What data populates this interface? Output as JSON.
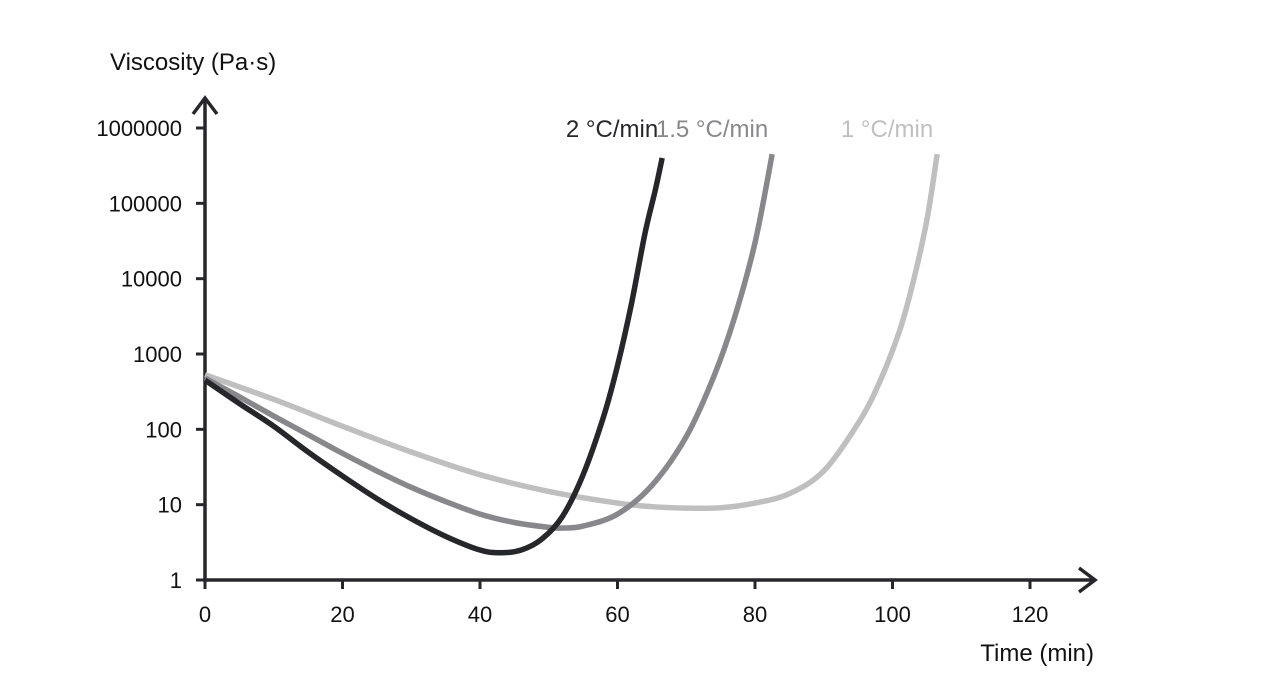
{
  "chart_data": {
    "type": "line",
    "xlabel": "Time (min)",
    "ylabel": "Viscosity (Pa·s)",
    "x_scale": "linear",
    "y_scale": "log",
    "xlim": [
      0,
      120
    ],
    "ylim": [
      1,
      1000000
    ],
    "x_ticks": [
      0,
      20,
      40,
      60,
      80,
      100,
      120
    ],
    "x_tick_labels": [
      "0",
      "20",
      "40",
      "60",
      "80",
      "100",
      "120"
    ],
    "y_ticks": [
      1,
      10,
      100,
      1000,
      10000,
      100000,
      1000000
    ],
    "y_tick_labels": [
      "1",
      "10",
      "100",
      "1000",
      "10000",
      "100000",
      "1000000"
    ],
    "grid": false,
    "legend": "inline labels at curve ends",
    "series": [
      {
        "name": "2 °C/min",
        "color": "#26272b",
        "points": [
          [
            0,
            450
          ],
          [
            5,
            220
          ],
          [
            10,
            110
          ],
          [
            15,
            50
          ],
          [
            20,
            24
          ],
          [
            25,
            12
          ],
          [
            30,
            6.5
          ],
          [
            35,
            3.8
          ],
          [
            40,
            2.5
          ],
          [
            43,
            2.3
          ],
          [
            46,
            2.5
          ],
          [
            49,
            3.5
          ],
          [
            52,
            7
          ],
          [
            55,
            25
          ],
          [
            58,
            150
          ],
          [
            60,
            700
          ],
          [
            62,
            4500
          ],
          [
            64,
            40000
          ],
          [
            65.5,
            150000
          ],
          [
            66.5,
            400000
          ]
        ]
      },
      {
        "name": "1.5 °C/min",
        "color": "#88888c",
        "points": [
          [
            0,
            480
          ],
          [
            5,
            270
          ],
          [
            10,
            150
          ],
          [
            15,
            85
          ],
          [
            20,
            48
          ],
          [
            25,
            28
          ],
          [
            30,
            17
          ],
          [
            35,
            11
          ],
          [
            40,
            7.5
          ],
          [
            45,
            5.8
          ],
          [
            50,
            5.0
          ],
          [
            52,
            4.9
          ],
          [
            55,
            5.2
          ],
          [
            60,
            7.5
          ],
          [
            65,
            18
          ],
          [
            70,
            80
          ],
          [
            74,
            500
          ],
          [
            77,
            3000
          ],
          [
            80,
            30000
          ],
          [
            82.5,
            450000
          ]
        ]
      },
      {
        "name": "1 °C/min",
        "color": "#bfbfbf",
        "points": [
          [
            0,
            530
          ],
          [
            10,
            250
          ],
          [
            20,
            110
          ],
          [
            30,
            50
          ],
          [
            40,
            25
          ],
          [
            50,
            15
          ],
          [
            60,
            10.5
          ],
          [
            65,
            9.4
          ],
          [
            70,
            9.0
          ],
          [
            75,
            9.1
          ],
          [
            80,
            10.5
          ],
          [
            85,
            14
          ],
          [
            90,
            28
          ],
          [
            95,
            120
          ],
          [
            98,
            400
          ],
          [
            101,
            2000
          ],
          [
            103,
            9000
          ],
          [
            105,
            60000
          ],
          [
            106.5,
            450000
          ]
        ]
      }
    ]
  }
}
